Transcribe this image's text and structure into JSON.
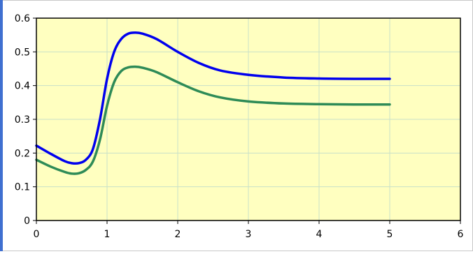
{
  "chart_data": {
    "type": "line",
    "title": "",
    "xlabel": "",
    "ylabel": "",
    "xlim": [
      0,
      6
    ],
    "ylim": [
      0,
      0.6
    ],
    "x_ticks": [
      "0",
      "1",
      "2",
      "3",
      "4",
      "5",
      "6"
    ],
    "y_ticks": [
      "0",
      "0.1",
      "0.2",
      "0.3",
      "0.4",
      "0.5",
      "0.6"
    ],
    "grid": true,
    "legend": "none",
    "plot_background": "#ffffc0",
    "grid_color": "#c8e0c8",
    "axis_color": "#000000",
    "series": [
      {
        "color": "#0000ee",
        "points": [
          [
            0,
            0.222
          ],
          [
            0.2,
            0.198
          ],
          [
            0.4,
            0.176
          ],
          [
            0.5,
            0.17
          ],
          [
            0.6,
            0.17
          ],
          [
            0.7,
            0.18
          ],
          [
            0.8,
            0.212
          ],
          [
            0.9,
            0.3
          ],
          [
            1.0,
            0.42
          ],
          [
            1.1,
            0.5
          ],
          [
            1.2,
            0.538
          ],
          [
            1.3,
            0.554
          ],
          [
            1.4,
            0.557
          ],
          [
            1.5,
            0.554
          ],
          [
            1.7,
            0.538
          ],
          [
            2.0,
            0.5
          ],
          [
            2.3,
            0.467
          ],
          [
            2.6,
            0.445
          ],
          [
            3.0,
            0.432
          ],
          [
            3.5,
            0.424
          ],
          [
            4.0,
            0.421
          ],
          [
            4.5,
            0.42
          ],
          [
            5.0,
            0.42
          ]
        ]
      },
      {
        "color": "#2e8b57",
        "points": [
          [
            0,
            0.18
          ],
          [
            0.2,
            0.16
          ],
          [
            0.4,
            0.144
          ],
          [
            0.5,
            0.139
          ],
          [
            0.6,
            0.14
          ],
          [
            0.7,
            0.15
          ],
          [
            0.8,
            0.175
          ],
          [
            0.9,
            0.24
          ],
          [
            1.0,
            0.34
          ],
          [
            1.1,
            0.41
          ],
          [
            1.2,
            0.443
          ],
          [
            1.3,
            0.454
          ],
          [
            1.4,
            0.456
          ],
          [
            1.5,
            0.453
          ],
          [
            1.7,
            0.44
          ],
          [
            2.0,
            0.41
          ],
          [
            2.3,
            0.383
          ],
          [
            2.6,
            0.365
          ],
          [
            3.0,
            0.353
          ],
          [
            3.5,
            0.347
          ],
          [
            4.0,
            0.345
          ],
          [
            4.5,
            0.344
          ],
          [
            5.0,
            0.344
          ]
        ]
      }
    ]
  }
}
